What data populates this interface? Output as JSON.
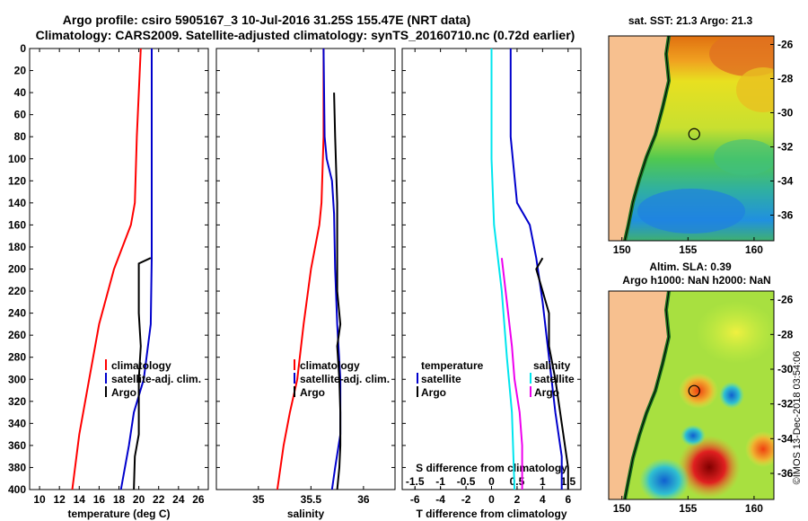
{
  "header": {
    "line1": "Argo profile: csiro 5905167_3 10-Jul-2016 31.25S 155.47E (NRT data)",
    "line2": "Climatology: CARS2009. Satellite-adjusted climatology: synTS_20160710.nc (0.72d earlier)"
  },
  "side_stamp": "©IMOS 13-Dec-2018 03:54:06",
  "colors": {
    "climatology": "#ff0000",
    "satellite": "#0000cc",
    "argo": "#000000",
    "cyan": "#00e5ee",
    "magenta": "#ee00ee",
    "land": "#f7c08f"
  },
  "chart_data": [
    {
      "type": "line",
      "name": "temperature-panel",
      "xlabel": "temperature (deg C)",
      "ylabel": "",
      "xlim": [
        9,
        27
      ],
      "ylim": [
        400,
        0
      ],
      "xticks": [
        "10",
        "12",
        "14",
        "16",
        "18",
        "20",
        "22",
        "24",
        "26"
      ],
      "xtick_values": [
        10,
        12,
        14,
        16,
        18,
        20,
        22,
        24,
        26
      ],
      "yticks": [
        "0",
        "20",
        "40",
        "60",
        "80",
        "100",
        "120",
        "140",
        "160",
        "180",
        "200",
        "220",
        "240",
        "260",
        "280",
        "300",
        "320",
        "340",
        "360",
        "380",
        "400"
      ],
      "ytick_values": [
        0,
        20,
        40,
        60,
        80,
        100,
        120,
        140,
        160,
        180,
        200,
        220,
        240,
        260,
        280,
        300,
        320,
        340,
        360,
        380,
        400
      ],
      "legend": [
        "climatology",
        "satellite-adj. clim.",
        "Argo"
      ],
      "series": [
        {
          "name": "climatology",
          "color": "#ff0000",
          "points": [
            [
              20.2,
              0
            ],
            [
              19.8,
              80
            ],
            [
              19.6,
              140
            ],
            [
              19.2,
              160
            ],
            [
              17.5,
              200
            ],
            [
              16.0,
              250
            ],
            [
              15.0,
              300
            ],
            [
              14.0,
              350
            ],
            [
              13.3,
              400
            ]
          ]
        },
        {
          "name": "satellite-adj. clim.",
          "color": "#0000cc",
          "points": [
            [
              21.3,
              0
            ],
            [
              21.3,
              190
            ],
            [
              21.2,
              250
            ],
            [
              20.5,
              300
            ],
            [
              19.5,
              330
            ],
            [
              19.0,
              360
            ],
            [
              18.2,
              400
            ]
          ]
        },
        {
          "name": "Argo",
          "color": "#000000",
          "points": [
            [
              21.2,
              190
            ],
            [
              20.0,
              195
            ],
            [
              20.0,
              240
            ],
            [
              20.2,
              270
            ],
            [
              20.0,
              300
            ],
            [
              20.0,
              320
            ],
            [
              20.0,
              350
            ],
            [
              19.6,
              370
            ],
            [
              19.5,
              400
            ]
          ]
        }
      ]
    },
    {
      "type": "line",
      "name": "salinity-panel",
      "xlabel": "salinity",
      "ylabel": "",
      "xlim": [
        34.6,
        36.3
      ],
      "ylim": [
        400,
        0
      ],
      "xticks": [
        "35",
        "35.5",
        "36"
      ],
      "xtick_values": [
        35,
        35.5,
        36
      ],
      "legend": [
        "climatology",
        "satellite-adj. clim.",
        "Argo"
      ],
      "series": [
        {
          "name": "climatology",
          "color": "#ff0000",
          "points": [
            [
              35.62,
              0
            ],
            [
              35.62,
              80
            ],
            [
              35.6,
              140
            ],
            [
              35.58,
              160
            ],
            [
              35.5,
              200
            ],
            [
              35.43,
              250
            ],
            [
              35.37,
              300
            ],
            [
              35.3,
              330
            ],
            [
              35.24,
              360
            ],
            [
              35.18,
              400
            ]
          ]
        },
        {
          "name": "satellite-adj. clim.",
          "color": "#0000cc",
          "points": [
            [
              35.62,
              0
            ],
            [
              35.63,
              80
            ],
            [
              35.65,
              100
            ],
            [
              35.7,
              120
            ],
            [
              35.72,
              150
            ],
            [
              35.73,
              200
            ],
            [
              35.75,
              250
            ],
            [
              35.78,
              300
            ],
            [
              35.78,
              350
            ],
            [
              35.73,
              380
            ],
            [
              35.7,
              400
            ]
          ]
        },
        {
          "name": "Argo",
          "color": "#000000",
          "points": [
            [
              35.72,
              40
            ],
            [
              35.73,
              80
            ],
            [
              35.75,
              140
            ],
            [
              35.75,
              190
            ],
            [
              35.75,
              220
            ],
            [
              35.78,
              250
            ],
            [
              35.75,
              270
            ],
            [
              35.77,
              300
            ],
            [
              35.78,
              330
            ],
            [
              35.78,
              360
            ],
            [
              35.77,
              380
            ],
            [
              35.75,
              400
            ]
          ]
        }
      ]
    },
    {
      "type": "line",
      "name": "difference-panel",
      "xlabel": "T difference from climatology",
      "xlabel2": "S difference from climatology",
      "xlim": [
        -7,
        7
      ],
      "ylim": [
        400,
        0
      ],
      "xticks": [
        "-6",
        "-4",
        "-2",
        "0",
        "2",
        "4",
        "6"
      ],
      "xtick_values": [
        -6,
        -4,
        -2,
        0,
        2,
        4,
        6
      ],
      "xticks2": [
        "-1.5",
        "-1",
        "-0.5",
        "0",
        "0.5",
        "1",
        "1.5"
      ],
      "xtick2_values": [
        -1.5,
        -1,
        -0.5,
        0,
        0.5,
        1,
        1.5
      ],
      "legend_left_title": "temperature",
      "legend_right_title": "salinity",
      "legend_left": [
        "satellite",
        "Argo"
      ],
      "legend_right": [
        "satellite",
        "Argo"
      ],
      "series": [
        {
          "name": "T satellite",
          "color": "#0000cc",
          "points": [
            [
              1.5,
              0
            ],
            [
              1.5,
              80
            ],
            [
              2.0,
              140
            ],
            [
              3.0,
              160
            ],
            [
              3.5,
              190
            ],
            [
              4.0,
              230
            ],
            [
              4.5,
              280
            ],
            [
              5.0,
              330
            ],
            [
              5.5,
              370
            ],
            [
              5.5,
              400
            ]
          ]
        },
        {
          "name": "T Argo",
          "color": "#000000",
          "points": [
            [
              4.0,
              190
            ],
            [
              3.5,
              200
            ],
            [
              4.5,
              240
            ],
            [
              4.5,
              270
            ],
            [
              5.0,
              300
            ],
            [
              5.5,
              340
            ],
            [
              6.0,
              380
            ],
            [
              6.0,
              400
            ]
          ]
        },
        {
          "name": "S satellite",
          "color": "#00e5ee",
          "points": [
            [
              0,
              0
            ],
            [
              0,
              100
            ],
            [
              0.05,
              160
            ],
            [
              0.2,
              220
            ],
            [
              0.3,
              280
            ],
            [
              0.4,
              330
            ],
            [
              0.45,
              400
            ]
          ]
        },
        {
          "name": "S Argo",
          "color": "#ee00ee",
          "points": [
            [
              0.2,
              190
            ],
            [
              0.3,
              230
            ],
            [
              0.4,
              270
            ],
            [
              0.45,
              300
            ],
            [
              0.55,
              330
            ],
            [
              0.6,
              360
            ],
            [
              0.6,
              400
            ]
          ]
        }
      ]
    },
    {
      "type": "heatmap",
      "name": "sst-map",
      "title": "sat. SST: 21.3  Argo: 21.3",
      "xlim": [
        149,
        161.5
      ],
      "ylim": [
        -37.5,
        -25.5
      ],
      "xticks": [
        "150",
        "155",
        "160"
      ],
      "xtick_values": [
        150,
        155,
        160
      ],
      "yticks": [
        "-26",
        "-28",
        "-30",
        "-32",
        "-34",
        "-36"
      ],
      "ytick_values": [
        -26,
        -28,
        -30,
        -32,
        -34,
        -36
      ],
      "argo_position": [
        155.47,
        -31.25
      ]
    },
    {
      "type": "heatmap",
      "name": "sla-map",
      "title": "Altim. SLA: 0.39",
      "subtitle": "Argo h1000: NaN h2000: NaN",
      "xlim": [
        149,
        161.5
      ],
      "ylim": [
        -37.5,
        -25.5
      ],
      "xticks": [
        "150",
        "155",
        "160"
      ],
      "xtick_values": [
        150,
        155,
        160
      ],
      "yticks": [
        "-26",
        "-28",
        "-30",
        "-32",
        "-34",
        "-36"
      ],
      "ytick_values": [
        -26,
        -28,
        -30,
        -32,
        -34,
        -36
      ],
      "argo_position": [
        155.47,
        -31.25
      ]
    }
  ]
}
